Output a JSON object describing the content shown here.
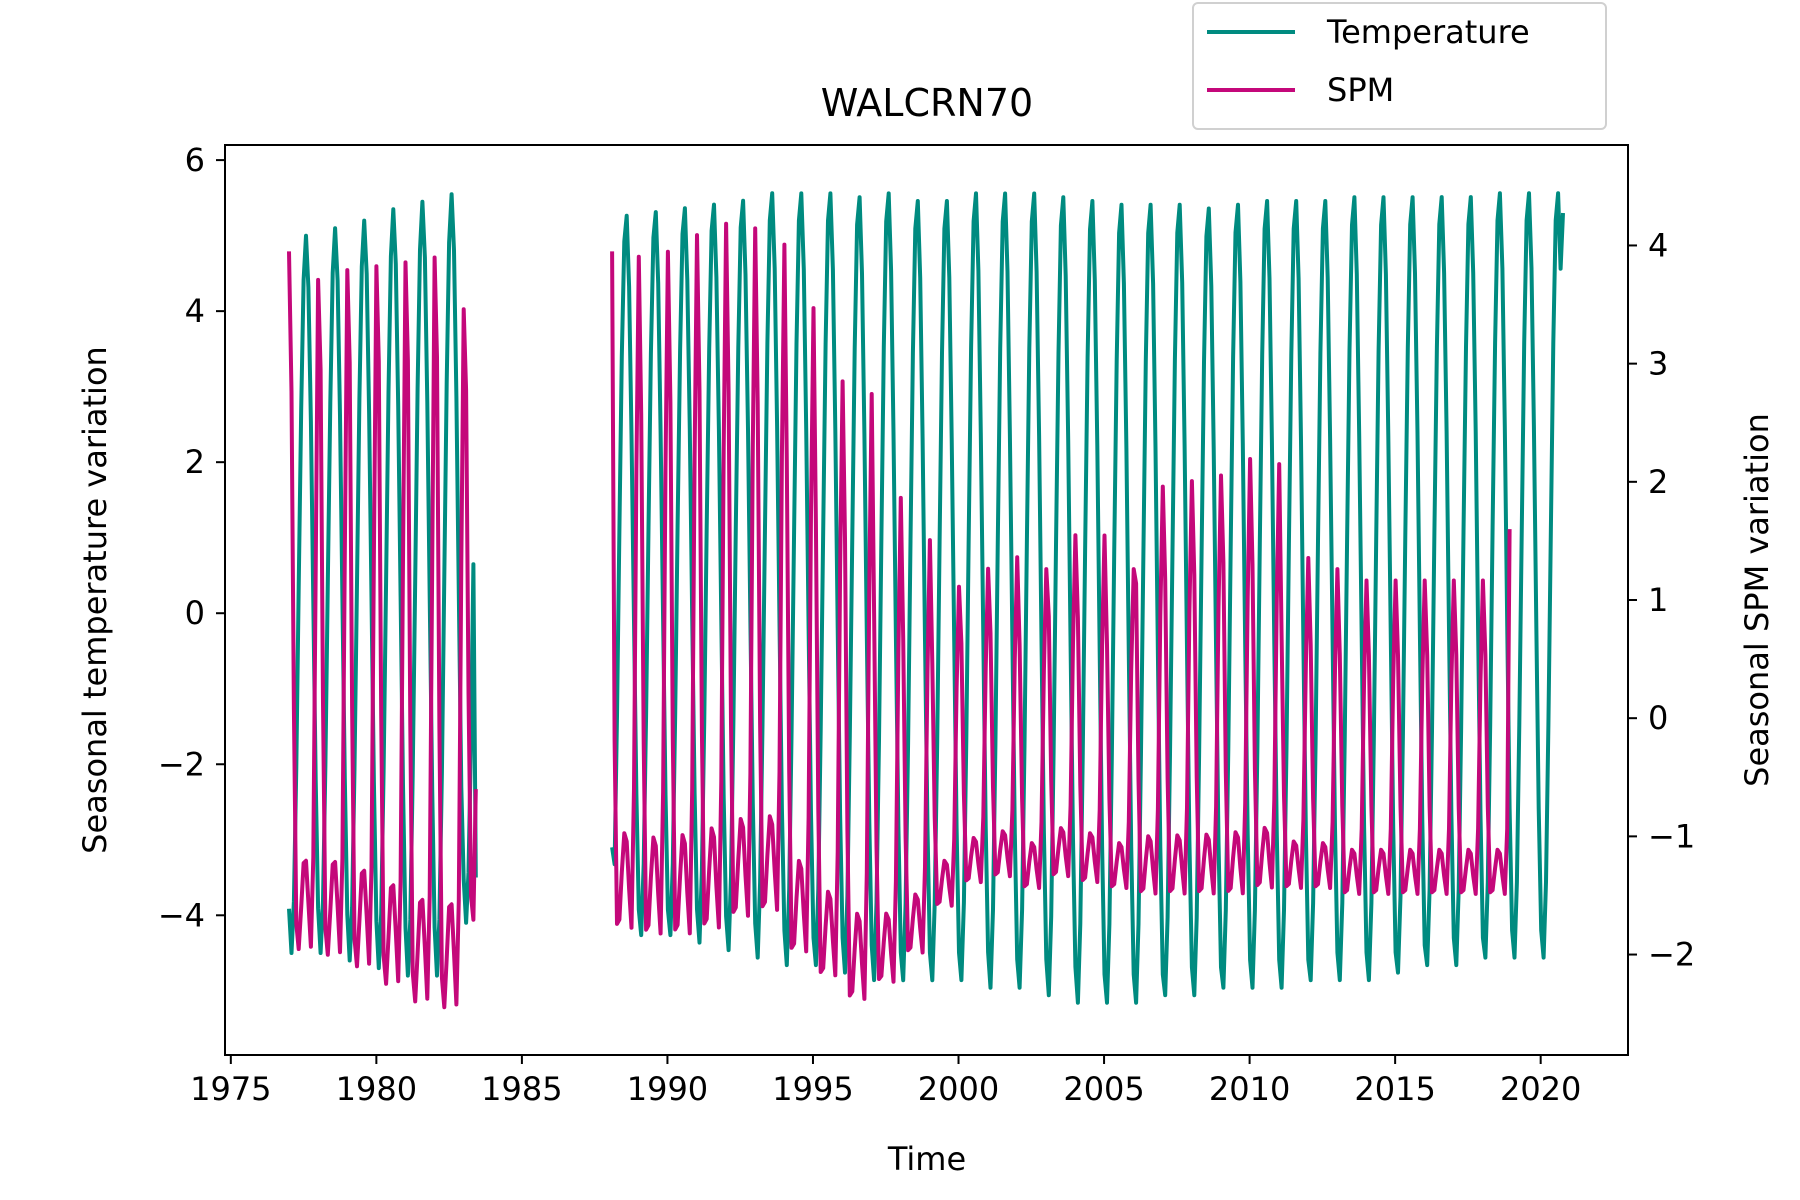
{
  "chart_data": {
    "type": "line",
    "title": "WALCRN70",
    "xlabel": "Time",
    "ylabel_left": "Seasonal temperature variation",
    "ylabel_right": "Seasonal SPM variation",
    "xlim": [
      1974.8,
      2023.0
    ],
    "ylim_left": [
      -5.85,
      6.2
    ],
    "ylim_right": [
      -2.85,
      4.85
    ],
    "x_ticks": [
      "1975",
      "1980",
      "1985",
      "1990",
      "1995",
      "2000",
      "2005",
      "2010",
      "2015",
      "2020"
    ],
    "y_ticks_left": [
      "−4",
      "−2",
      "0",
      "2",
      "4",
      "6"
    ],
    "y_ticks_right": [
      "−2",
      "−1",
      "0",
      "1",
      "2",
      "3",
      "4"
    ],
    "legend": {
      "placement": "top-right, above plot",
      "entries": [
        "Temperature",
        "SPM"
      ]
    },
    "grid": false,
    "series": [
      {
        "name": "Temperature",
        "axis": "left",
        "color": "#008b80",
        "segments": [
          {
            "x_start": 1977.0,
            "x_end": 1983.4,
            "amplitude": 4.9,
            "peak_month_fraction": 0.58,
            "end_value": -3.5
          },
          {
            "x_start": 1988.1,
            "x_end": 2020.8,
            "amplitude": 5.3,
            "peak_month_fraction": 0.58,
            "start_value": -3.1,
            "end_value": 5.3
          }
        ],
        "annual_peaks_approx": [
          5.0,
          5.1,
          5.2,
          5.35,
          5.45,
          5.55,
          5.2,
          5.3,
          5.35,
          5.4,
          5.45,
          5.5,
          5.6,
          5.6,
          5.6,
          5.55,
          5.6,
          5.5,
          5.5,
          5.6,
          5.6,
          5.6,
          5.55,
          5.5,
          5.45,
          5.45,
          5.45,
          5.4,
          5.45,
          5.5,
          5.5,
          5.5,
          5.55,
          5.55,
          5.55,
          5.55,
          5.55,
          5.6,
          5.6,
          5.6
        ],
        "annual_troughs_approx": [
          -4.5,
          -4.5,
          -4.6,
          -4.7,
          -4.8,
          -4.8,
          -4.1,
          -4.3,
          -4.3,
          -4.3,
          -4.4,
          -4.5,
          -4.6,
          -4.7,
          -4.7,
          -4.8,
          -4.9,
          -4.9,
          -4.9,
          -4.9,
          -5.0,
          -5.0,
          -5.1,
          -5.2,
          -5.2,
          -5.2,
          -5.1,
          -5.1,
          -5.0,
          -5.0,
          -5.0,
          -4.9,
          -4.9,
          -4.9,
          -4.8,
          -4.7,
          -4.7,
          -4.6,
          -4.6,
          -4.6
        ]
      },
      {
        "name": "SPM",
        "axis": "right",
        "color": "#c4087a",
        "segments": [
          {
            "x_start": 1977.0,
            "x_end": 1983.4,
            "start_value": 3.95,
            "end_value": -0.6
          },
          {
            "x_start": 1988.1,
            "x_end": 2018.9,
            "start_value": 3.95,
            "end_value": 1.6
          }
        ],
        "annual_peaks_approx": [
          4.0,
          4.25,
          4.35,
          4.4,
          4.45,
          4.5,
          3.95,
          4.3,
          4.35,
          4.5,
          4.6,
          4.55,
          4.4,
          3.85,
          3.2,
          3.1,
          2.15,
          1.75,
          1.3,
          1.45,
          1.55,
          1.45,
          1.75,
          1.75,
          1.45,
          2.2,
          2.25,
          2.3,
          2.45,
          2.4,
          1.55,
          1.45,
          1.35,
          1.35,
          1.35
        ],
        "annual_troughs_approx": [
          -2.0,
          -2.05,
          -2.15,
          -2.3,
          -2.45,
          -2.5,
          -1.75,
          -1.8,
          -1.85,
          -1.85,
          -1.8,
          -1.7,
          -1.65,
          -2.0,
          -2.2,
          -2.4,
          -2.25,
          -2.0,
          -1.6,
          -1.4,
          -1.35,
          -1.45,
          -1.35,
          -1.4,
          -1.45,
          -1.5,
          -1.5,
          -1.5,
          -1.5,
          -1.45,
          -1.45,
          -1.45,
          -1.5,
          -1.5,
          -1.5
        ]
      }
    ]
  }
}
